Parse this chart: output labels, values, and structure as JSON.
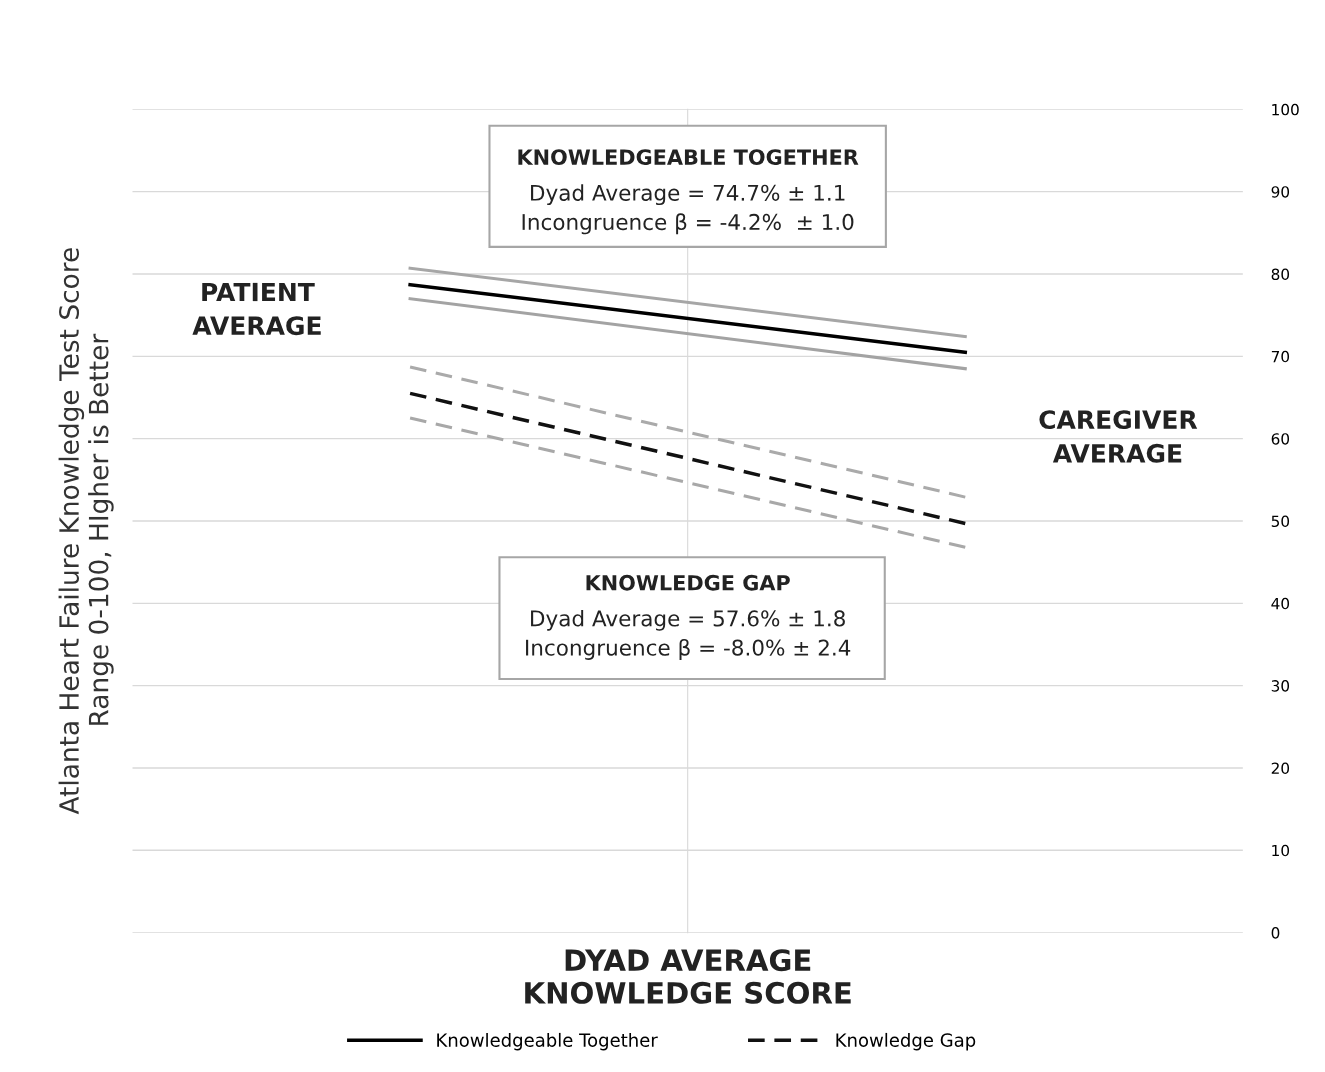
{
  "chart_data": {
    "type": "line",
    "xlabel": "DYAD AVERAGE\nKNOWLEDGE SCORE",
    "ylabel": "Atlanta Heart Failure Knowledge Test Score\nRange 0-100, HIgher is Better",
    "categories": [
      null,
      null
    ],
    "series": [
      {
        "name": "Knowledgeable Together",
        "color": "#000000",
        "line_style": "solid",
        "values": [
          78.7,
          70.5
        ]
      },
      {
        "color": "#a6a6a6",
        "line_style": "solid",
        "values": [
          80.7,
          72.4
        ]
      },
      {
        "color": "#a3a3a3",
        "line_style": "solid",
        "values": [
          77.0,
          68.5
        ]
      },
      {
        "name": "Knowledge Gap",
        "color": "#111111",
        "line_style": "dashed",
        "values": [
          65.5,
          49.7
        ]
      },
      {
        "color": "#aaaaaa",
        "line_style": "dashed",
        "values": [
          68.7,
          52.9
        ]
      },
      {
        "color": "#a8a8a8",
        "line_style": "dashed",
        "values": [
          62.5,
          46.8
        ]
      }
    ],
    "ylim": [
      0,
      100
    ],
    "yticks": [
      0,
      10,
      20,
      30,
      40,
      50,
      60,
      70,
      80,
      90,
      100
    ],
    "grid": "y",
    "legend": "bottom",
    "marker": "none",
    "annotations": [
      "KNOWLEDGEABLE TOGETHER",
      "Dyad Average = 74.7% ± 1.1\nIncongruence β = -4.2%  ± 1.0",
      "KNOWLEDGE GAP",
      "Dyad Average = 57.6% ± 1.8\nIncongruence β = -8.0% ± 2.4",
      "PATIENT\nAVERAGE",
      "CAREGIVER\nAVERAGE"
    ]
  }
}
